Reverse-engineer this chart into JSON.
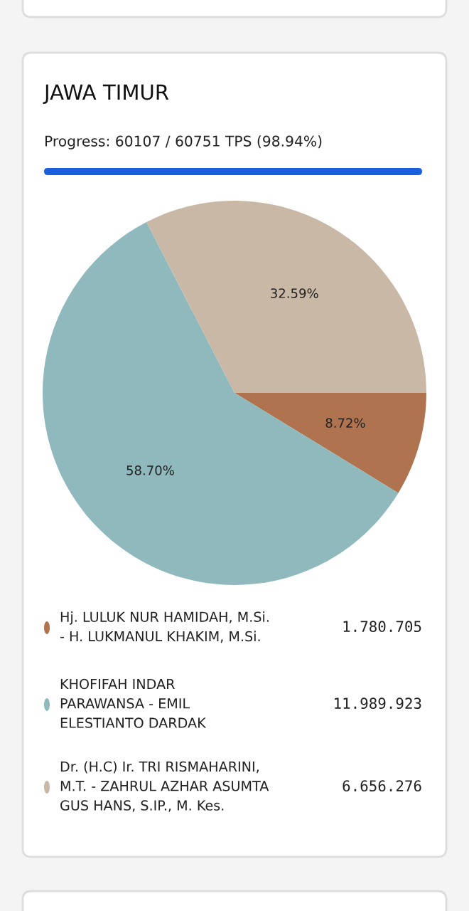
{
  "chart_data": {
    "type": "pie",
    "title": "JAWA TIMUR",
    "subtitle": "Progress: 60107 / 60751 TPS (98.94%)",
    "categories": [
      "Hj. LULUK NUR HAMIDAH, M.Si.\n- H. LUKMANUL KHAKIM, M.Si.",
      "KHOFIFAH INDAR\nPARAWANSA - EMIL\nELESTIANTO DARDAK",
      "Dr. (H.C) Ir. TRI RISMAHARINI,\nM.T. - ZAHRUL AZHAR ASUMTA\nGUS HANS, S.IP., M. Kes."
    ],
    "values": [
      8.72,
      58.7,
      32.59
    ],
    "annotations": [
      "1.780.705",
      "11.989.923",
      "6.656.276"
    ],
    "value_labels": [
      "8.72%",
      "58.70%",
      "32.59%"
    ],
    "colors": [
      "#b07350",
      "#8fb9bd",
      "#c9b8a5"
    ],
    "legend": "bottom"
  }
}
